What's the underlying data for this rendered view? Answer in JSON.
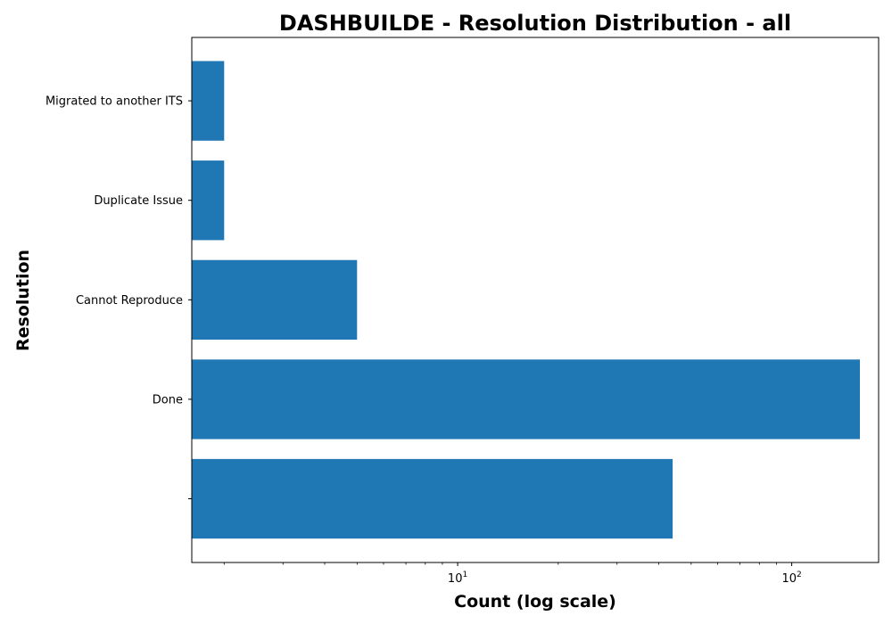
{
  "chart_data": {
    "type": "bar",
    "orientation": "horizontal",
    "title": "DASHBUILDE - Resolution Distribution - all",
    "xlabel": "Count (log scale)",
    "ylabel": "Resolution",
    "x_scale": "log",
    "xlim": [
      1.6,
      182
    ],
    "x_ticks": [
      {
        "value": 10,
        "base": "10",
        "exp": "1"
      },
      {
        "value": 100,
        "base": "10",
        "exp": "2"
      }
    ],
    "categories": [
      "",
      "Done",
      "Cannot Reproduce",
      "Duplicate Issue",
      "Migrated to another ITS"
    ],
    "values": [
      44,
      160,
      5,
      2,
      2
    ],
    "bar_color": "#1f77b4",
    "grid": false,
    "legend": "none"
  }
}
